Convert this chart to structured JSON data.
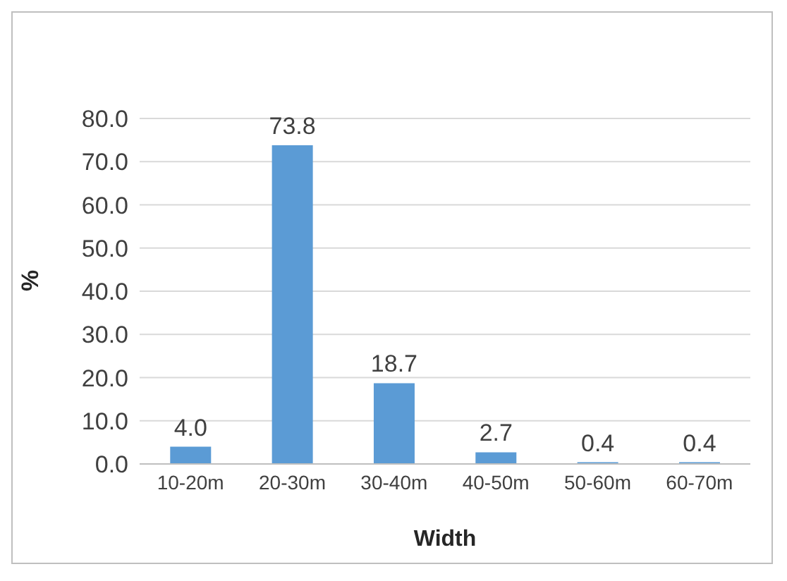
{
  "chart_data": {
    "type": "bar",
    "xlabel": "Width",
    "ylabel": "%",
    "categories": [
      "10-20m",
      "20-30m",
      "30-40m",
      "40-50m",
      "50-60m",
      "60-70m"
    ],
    "values": [
      4.0,
      73.8,
      18.7,
      2.7,
      0.4,
      0.4
    ],
    "value_labels": [
      "4.0",
      "73.8",
      "18.7",
      "2.7",
      "0.4",
      "0.4"
    ],
    "color": "#5b9bd5",
    "ylim": [
      0,
      80
    ],
    "yticks": [
      {
        "value": 0,
        "label": "0.0"
      },
      {
        "value": 10,
        "label": "10.0"
      },
      {
        "value": 20,
        "label": "20.0"
      },
      {
        "value": 30,
        "label": "30.0"
      },
      {
        "value": 40,
        "label": "40.0"
      },
      {
        "value": 50,
        "label": "50.0"
      },
      {
        "value": 60,
        "label": "60.0"
      },
      {
        "value": 70,
        "label": "70.0"
      },
      {
        "value": 80,
        "label": "80.0"
      }
    ],
    "grid": "y",
    "legend": false
  }
}
